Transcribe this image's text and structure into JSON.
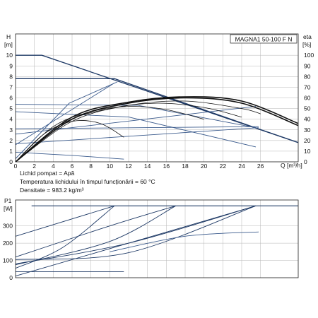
{
  "chart_data": [
    {
      "type": "line",
      "title": "MAGNA1 50-100 F N",
      "ylabel_left": "H",
      "ylabel_left_unit": "[m]",
      "ylabel_right": "eta",
      "ylabel_right_unit": "[%]",
      "xlabel": "Q [m³/h]",
      "xlim": [
        0,
        30
      ],
      "ylim_left": [
        0,
        12
      ],
      "ylim_right": [
        0,
        120
      ],
      "x_ticks": [
        "0",
        "2",
        "4",
        "6",
        "8",
        "10",
        "12",
        "14",
        "16",
        "18",
        "20",
        "22",
        "24",
        "26"
      ],
      "y_ticks_left": [
        "0",
        "1",
        "2",
        "3",
        "4",
        "5",
        "6",
        "7",
        "8",
        "9",
        "10"
      ],
      "y_ticks_right": [
        "0",
        "10",
        "20",
        "30",
        "40",
        "50",
        "60",
        "70",
        "80",
        "90",
        "100"
      ],
      "grid": true,
      "info_lines": [
        "Lichid pompat = Apă",
        "Temperatura lichidului în timpul funcționării = 60 °C",
        "Densitate = 983.2 kg/m³"
      ],
      "head_curves": [
        {
          "x": [
            0,
            2.8,
            30
          ],
          "y": [
            10,
            10,
            1.8
          ]
        },
        {
          "x": [
            0,
            10.5,
            30
          ],
          "y": [
            7.8,
            7.8,
            1.8
          ]
        },
        {
          "x": [
            0,
            13,
            25.5
          ],
          "y": [
            5.4,
            5.3,
            3.2
          ]
        },
        {
          "x": [
            0,
            12,
            25.5
          ],
          "y": [
            4.7,
            4.2,
            1.4
          ]
        },
        {
          "x": [
            0,
            6,
            11.5
          ],
          "y": [
            0.9,
            0.6,
            0.25
          ]
        },
        {
          "x": [
            0,
            10.5
          ],
          "y": [
            1.6,
            7.4
          ]
        },
        {
          "x": [
            0,
            5.7,
            10.8
          ],
          "y": [
            0.3,
            5.5,
            7.5
          ]
        },
        {
          "x": [
            0,
            25.5
          ],
          "y": [
            2.6,
            5.2
          ]
        },
        {
          "x": [
            0,
            25.8
          ],
          "y": [
            1.7,
            3.2
          ]
        },
        {
          "x": [
            0,
            25.8
          ],
          "y": [
            3.1,
            3.3
          ]
        }
      ],
      "efficiency_curves": [
        {
          "x": [
            0,
            6,
            12,
            18,
            24,
            30
          ],
          "y": [
            0,
            42,
            56,
            61,
            57,
            36
          ]
        },
        {
          "x": [
            0,
            6,
            12,
            18,
            24,
            30
          ],
          "y": [
            0,
            40,
            55,
            60,
            55,
            34
          ]
        },
        {
          "x": [
            0,
            6,
            12,
            18,
            24,
            26
          ],
          "y": [
            0,
            38,
            53,
            57,
            50,
            45
          ]
        },
        {
          "x": [
            0,
            5,
            10,
            15,
            20,
            24
          ],
          "y": [
            0,
            36,
            50,
            55,
            51,
            42
          ]
        },
        {
          "x": [
            0,
            4,
            8,
            12,
            16,
            20
          ],
          "y": [
            0,
            33,
            47,
            52,
            49,
            40
          ]
        },
        {
          "x": [
            0,
            3,
            6,
            9,
            11.5
          ],
          "y": [
            0,
            26,
            38,
            36,
            23
          ]
        }
      ]
    },
    {
      "type": "line",
      "ylabel": "P1",
      "ylabel_unit": "[W]",
      "xlim": [
        0,
        30
      ],
      "ylim": [
        0,
        450
      ],
      "y_ticks": [
        "0",
        "100",
        "200",
        "300"
      ],
      "grid": true,
      "series": [
        {
          "x": [
            1.7,
            30
          ],
          "y": [
            416,
            416
          ]
        },
        {
          "x": [
            0,
            10.5
          ],
          "y": [
            240,
            416
          ]
        },
        {
          "x": [
            0,
            5,
            10.5
          ],
          "y": [
            55,
            175,
            416
          ]
        },
        {
          "x": [
            0,
            10,
            17
          ],
          "y": [
            120,
            300,
            416
          ]
        },
        {
          "x": [
            0,
            10,
            17
          ],
          "y": [
            75,
            210,
            416
          ]
        },
        {
          "x": [
            0,
            12,
            25.5
          ],
          "y": [
            10,
            200,
            416
          ]
        },
        {
          "x": [
            0,
            12,
            25.5
          ],
          "y": [
            105,
            145,
            416
          ]
        },
        {
          "x": [
            0,
            12,
            25.5
          ],
          "y": [
            80,
            200,
            416
          ]
        },
        {
          "x": [
            10,
            18,
            25.8
          ],
          "y": [
            150,
            240,
            265
          ]
        },
        {
          "x": [
            0,
            11.5
          ],
          "y": [
            35,
            35
          ]
        }
      ]
    }
  ]
}
